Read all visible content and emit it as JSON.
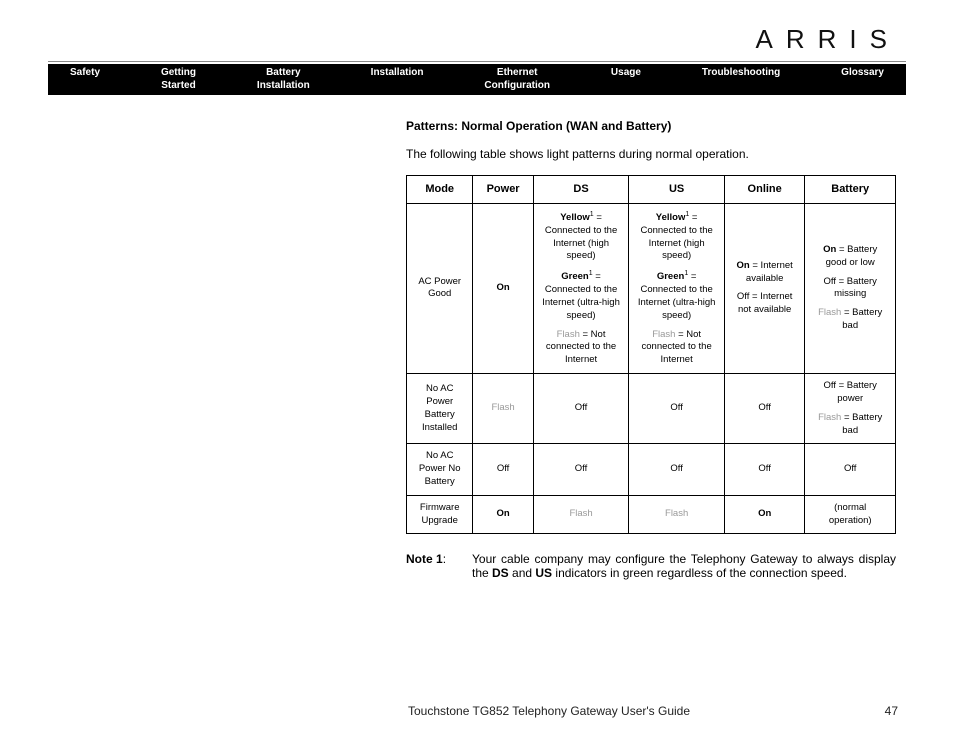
{
  "brand": "ARRIS",
  "nav": [
    "Safety",
    "Getting\nStarted",
    "Battery\nInstallation",
    "Installation",
    "Ethernet\nConfiguration",
    "Usage",
    "Troubleshooting",
    "Glossary"
  ],
  "section_title": "Patterns: Normal Operation (WAN and Battery)",
  "intro": "The following table shows light patterns during normal operation.",
  "table": {
    "headers": [
      "Mode",
      "Power",
      "DS",
      "US",
      "Online",
      "Battery"
    ],
    "rows": [
      {
        "mode": "AC Power Good",
        "power_html": "<span class='b'>On</span>",
        "ds_html": "<span class='seg'><span class='b'>Yellow</span><span class='sup'>1</span> = Connected to the Internet (high speed)</span><span class='seg'><span class='b'>Green</span><span class='sup'>1</span> = Connected to the In­ternet (ultra-high speed)</span><span class='seg'><span class='g'>Flash</span> = Not connected to the Internet</span>",
        "us_html": "<span class='seg'><span class='b'>Yellow</span><span class='sup'>1</span> = Connected to the Internet (high speed)</span><span class='seg'><span class='b'>Green</span><span class='sup'>1</span> = Connected to the In­ternet (ultra-high speed)</span><span class='seg'><span class='g'>Flash</span> = Not connected to the Internet</span>",
        "online_html": "<span class='seg'><span class='b'>On</span> = Internet available</span><span class='seg'>Off = Internet not available</span>",
        "battery_html": "<span class='seg'><span class='b'>On</span> = Battery good or low</span><span class='seg'>Off = Battery missing</span><span class='seg'><span class='g'>Flash</span> = Battery bad</span>"
      },
      {
        "mode": "No AC Power Battery Installed",
        "power_html": "<span class='g'>Flash</span>",
        "ds_html": "Off",
        "us_html": "Off",
        "online_html": "Off",
        "battery_html": "<span class='seg'>Off = Battery power</span><span class='seg'><span class='g'>Flash</span> = Battery bad</span>"
      },
      {
        "mode": "No AC Power No Battery",
        "power_html": "Off",
        "ds_html": "Off",
        "us_html": "Off",
        "online_html": "Off",
        "battery_html": "Off"
      },
      {
        "mode": "Firmware Upgrade",
        "power_html": "<span class='b'>On</span>",
        "ds_html": "<span class='g'>Flash</span>",
        "us_html": "<span class='g'>Flash</span>",
        "online_html": "<span class='b'>On</span>",
        "battery_html": "(normal operation)"
      }
    ]
  },
  "note_label": "Note 1",
  "note_body_html": "Your cable company may configure the Telephony Gateway to always display the <b>DS</b> and <b>US</b> indicators in green regardless of the connection speed.",
  "footer_doc": "Touchstone TG852 Telephony Gateway User's Guide",
  "footer_page": "47"
}
